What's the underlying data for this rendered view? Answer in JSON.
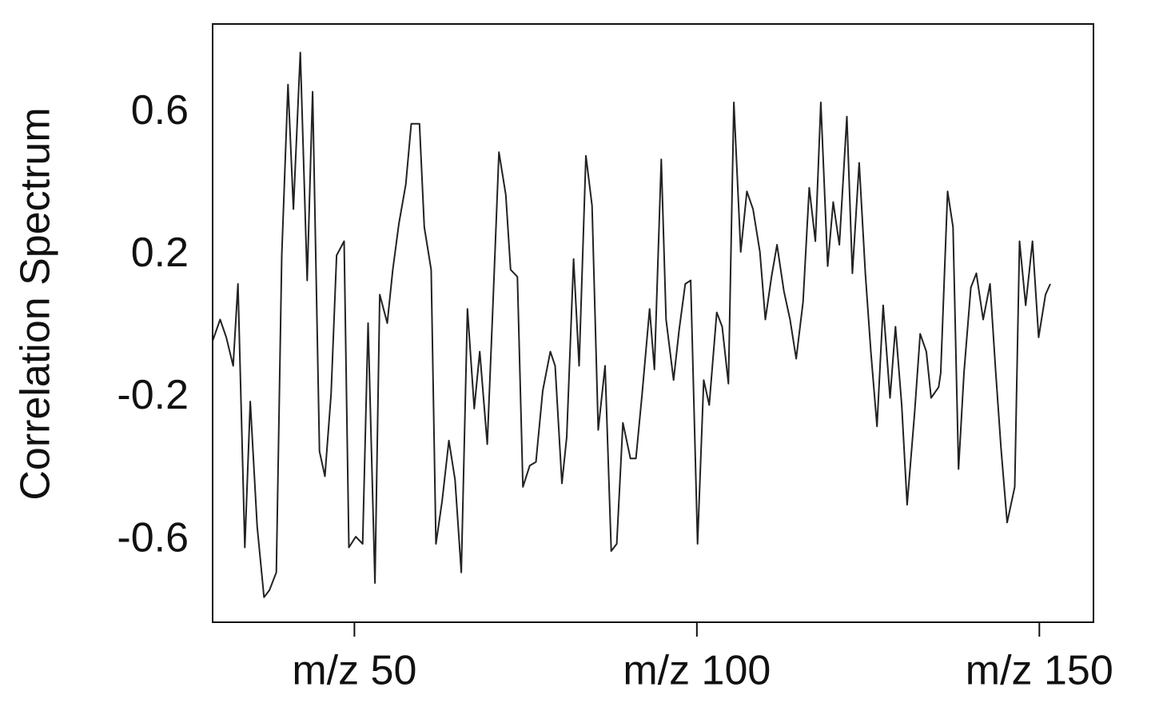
{
  "chart_data": {
    "type": "line",
    "ylabel": "Correlation  Spectrum",
    "x": [
      29.3,
      30.4,
      31.3,
      32.3,
      33.0,
      34.0,
      34.8,
      35.8,
      36.8,
      37.6,
      38.6,
      39.4,
      40.3,
      41.1,
      42.1,
      43.1,
      43.9,
      44.9,
      45.7,
      46.6,
      47.4,
      48.5,
      49.2,
      50.2,
      51.2,
      52.0,
      53.0,
      53.7,
      54.8,
      55.6,
      56.5,
      57.5,
      58.3,
      59.5,
      60.2,
      61.2,
      61.9,
      62.8,
      63.8,
      64.7,
      65.6,
      66.5,
      67.5,
      68.3,
      69.4,
      70.2,
      71.1,
      72.1,
      72.8,
      73.8,
      74.6,
      75.6,
      76.5,
      77.5,
      78.6,
      79.3,
      80.3,
      81.0,
      82.0,
      82.8,
      83.8,
      84.7,
      85.6,
      86.6,
      87.5,
      88.3,
      89.2,
      90.3,
      91.1,
      92.0,
      93.1,
      93.8,
      94.8,
      95.5,
      96.6,
      97.4,
      98.3,
      99.1,
      100.1,
      101.0,
      101.8,
      102.9,
      103.7,
      104.6,
      105.4,
      106.4,
      107.3,
      108.2,
      109.2,
      110.0,
      110.9,
      111.7,
      112.7,
      113.6,
      114.5,
      115.5,
      116.4,
      117.3,
      118.1,
      119.1,
      119.9,
      120.8,
      121.9,
      122.7,
      123.7,
      124.6,
      125.4,
      126.3,
      127.2,
      128.2,
      129.0,
      129.9,
      130.7,
      131.8,
      132.6,
      133.5,
      134.2,
      135.3,
      135.6,
      136.6,
      137.4,
      138.2,
      139.0,
      140.0,
      140.8,
      141.8,
      142.8,
      143.6,
      144.4,
      145.3,
      146.4,
      147.1,
      148.0,
      149.0,
      149.9,
      150.9,
      151.6
    ],
    "series": [
      {
        "color": "#222222",
        "values": [
          -0.04,
          0.02,
          -0.03,
          -0.11,
          0.12,
          -0.62,
          -0.21,
          -0.56,
          -0.76,
          -0.74,
          -0.69,
          0.2,
          0.68,
          0.33,
          0.77,
          0.13,
          0.66,
          -0.35,
          -0.42,
          -0.19,
          0.2,
          0.24,
          -0.62,
          -0.59,
          -0.61,
          0.01,
          -0.72,
          0.09,
          0.01,
          0.16,
          0.29,
          0.4,
          0.57,
          0.57,
          0.28,
          0.16,
          -0.61,
          -0.49,
          -0.32,
          -0.43,
          -0.69,
          0.05,
          -0.23,
          -0.07,
          -0.33,
          0.05,
          0.49,
          0.37,
          0.16,
          0.14,
          -0.45,
          -0.39,
          -0.38,
          -0.18,
          -0.07,
          -0.11,
          -0.44,
          -0.31,
          0.19,
          -0.11,
          0.48,
          0.34,
          -0.29,
          -0.11,
          -0.63,
          -0.61,
          -0.27,
          -0.37,
          -0.37,
          -0.19,
          0.05,
          -0.12,
          0.47,
          0.02,
          -0.15,
          -0.01,
          0.12,
          0.13,
          -0.61,
          -0.15,
          -0.22,
          0.04,
          0.0,
          -0.16,
          0.63,
          0.21,
          0.38,
          0.33,
          0.21,
          0.02,
          0.14,
          0.23,
          0.1,
          0.02,
          -0.09,
          0.07,
          0.39,
          0.24,
          0.63,
          0.17,
          0.35,
          0.23,
          0.59,
          0.15,
          0.46,
          0.15,
          -0.07,
          -0.28,
          0.06,
          -0.2,
          0.0,
          -0.22,
          -0.5,
          -0.24,
          -0.02,
          -0.07,
          -0.2,
          -0.17,
          -0.13,
          0.38,
          0.28,
          -0.4,
          -0.13,
          0.11,
          0.15,
          0.02,
          0.12,
          -0.12,
          -0.34,
          -0.55,
          -0.45,
          0.24,
          0.06,
          0.24,
          -0.03,
          0.09,
          0.12
        ]
      }
    ],
    "xlim": [
      29.3,
      157.9
    ],
    "ylim": [
      -0.83,
      0.85
    ],
    "xticks": [
      {
        "value": 50,
        "label": "m/z 50"
      },
      {
        "value": 100,
        "label": "m/z 100"
      },
      {
        "value": 150,
        "label": "m/z 150"
      }
    ],
    "yticks": [
      -0.6,
      -0.2,
      0.2,
      0.6
    ],
    "grid": false
  }
}
